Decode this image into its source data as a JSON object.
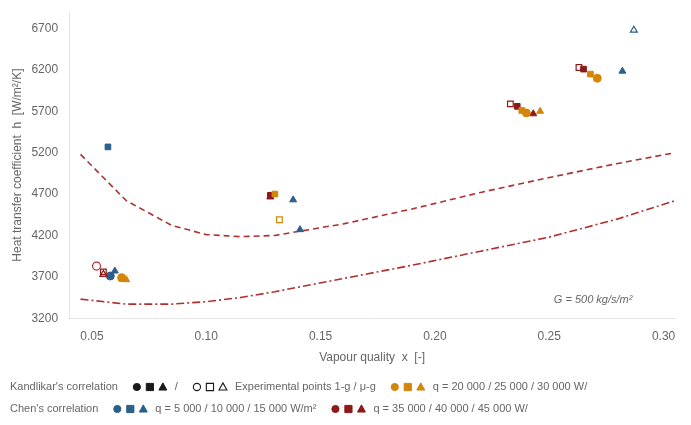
{
  "chart_data": {
    "type": "scatter",
    "xlabel": "Vapour quality  x  [-]",
    "ylabel": "Heat transfer coefficient  h  [W/m²/K]",
    "xlim": [
      0.04,
      0.305
    ],
    "ylim": [
      3200,
      6900
    ],
    "xticks": [
      0.05,
      {
        "value": 0.1,
        "label": "0.10"
      },
      {
        "value": 0.15,
        "label": "0.15"
      },
      {
        "value": 0.2,
        "label": "0.20"
      },
      {
        "value": 0.25,
        "label": "0.25"
      },
      {
        "value": 0.3,
        "label": "0.30"
      }
    ],
    "yticks": [
      3200,
      3700,
      4200,
      4700,
      5200,
      5700,
      6200,
      6700
    ],
    "grid": false,
    "series": [
      {
        "type": "line",
        "color": "#b03030",
        "line_style": "dashed",
        "x": [
          0.045,
          0.065,
          0.085,
          0.1,
          0.115,
          0.13,
          0.16,
          0.19,
          0.22,
          0.25,
          0.28,
          0.305
        ],
        "values": [
          5180,
          4620,
          4320,
          4210,
          4185,
          4200,
          4340,
          4520,
          4720,
          4900,
          5070,
          5200
        ]
      },
      {
        "type": "line",
        "color": "#b03030",
        "line_style": "dashdot",
        "x": [
          0.045,
          0.065,
          0.085,
          0.1,
          0.115,
          0.13,
          0.16,
          0.19,
          0.22,
          0.25,
          0.28,
          0.305
        ],
        "values": [
          3430,
          3370,
          3370,
          3400,
          3450,
          3520,
          3680,
          3840,
          4010,
          4180,
          4400,
          4620
        ]
      },
      {
        "type": "scatter",
        "color": "#2c5f8a",
        "marker": "square",
        "x": [
          0.057
        ],
        "values": [
          5270
        ]
      },
      {
        "type": "scatter",
        "color": "#b03030",
        "marker": "circle_open",
        "x": [
          0.052
        ],
        "values": [
          3830
        ]
      },
      {
        "type": "scatter",
        "color": "#8b1a1a",
        "marker": "square_open",
        "x": [
          0.055,
          0.233,
          0.263
        ],
        "values": [
          3760,
          5790,
          6230
        ]
      },
      {
        "type": "scatter",
        "color": "#8b1a1a",
        "marker": "triangle_open",
        "x": [
          0.055
        ],
        "values": [
          3730
        ]
      },
      {
        "type": "scatter",
        "color": "#d4860a",
        "marker": "circle",
        "x": [
          0.063,
          0.24,
          0.271
        ],
        "values": [
          3690,
          5680,
          6100
        ]
      },
      {
        "type": "scatter",
        "color": "#d4860a",
        "marker": "square",
        "x": [
          0.063,
          0.13,
          0.238,
          0.268
        ],
        "values": [
          3680,
          4700,
          5710,
          6150
        ]
      },
      {
        "type": "scatter",
        "color": "#d4860a",
        "marker": "triangle",
        "x": [
          0.065,
          0.246
        ],
        "values": [
          3665,
          5700
        ]
      },
      {
        "type": "scatter",
        "color": "#2c5f8a",
        "marker": "circle",
        "x": [
          0.058
        ],
        "values": [
          3710
        ]
      },
      {
        "type": "scatter",
        "color": "#2c5f8a",
        "marker": "triangle",
        "x": [
          0.06,
          0.138,
          0.141,
          0.282
        ],
        "values": [
          3770,
          4630,
          4270,
          6185
        ]
      },
      {
        "type": "scatter",
        "color": "#8b1a1a",
        "marker": "square",
        "x": [
          0.128,
          0.236,
          0.265
        ],
        "values": [
          4685,
          5760,
          6210
        ]
      },
      {
        "type": "scatter",
        "color": "#8b1a1a",
        "marker": "triangle",
        "x": [
          0.128,
          0.243
        ],
        "values": [
          4665,
          5670
        ]
      },
      {
        "type": "scatter",
        "color": "#d4860a",
        "marker": "square_open",
        "x": [
          0.132
        ],
        "values": [
          4390
        ]
      },
      {
        "type": "scatter",
        "color": "#2c5f8a",
        "marker": "triangle_open",
        "x": [
          0.287
        ],
        "values": [
          6680
        ]
      }
    ],
    "annotations": [
      {
        "text": "G = 500 kg/s/m²",
        "x": 0.252,
        "y": 3360
      },
      {
        "text": "Kandlikar's correlation"
      },
      {
        "text": "/",
        "color": "#1a1a1a",
        "marker": "filled"
      },
      {
        "text": "Experimental points 1-g / μ-g",
        "color": "#1a1a1a",
        "marker": "open"
      },
      {
        "text": "q = 20 000 / 25 000 / 30 000 W/",
        "color": "#d4860a",
        "marker": "filled"
      },
      {
        "text": "Chen's correlation"
      },
      {
        "text": "q = 5 000 / 10 000 / 15 000 W/m²",
        "color": "#2c5f8a",
        "marker": "filled"
      },
      {
        "text": "q = 35 000 / 40 000 / 45 000 W/",
        "color": "#8b1a1a",
        "marker": "filled"
      }
    ]
  }
}
